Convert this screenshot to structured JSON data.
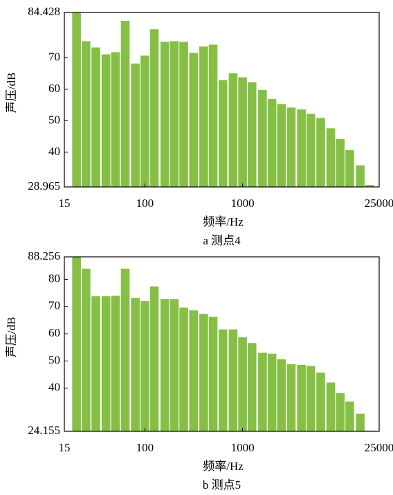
{
  "chart_data": [
    {
      "type": "bar",
      "caption": "a  测点4",
      "xlabel": "频率/Hz",
      "ylabel": "声压/dB",
      "color": "#86bf45",
      "log_x": true,
      "x": [
        20,
        25,
        31.5,
        40,
        50,
        63,
        80,
        100,
        125,
        160,
        200,
        250,
        315,
        400,
        500,
        630,
        800,
        1000,
        1250,
        1600,
        2000,
        2500,
        3150,
        4000,
        5000,
        6300,
        8000,
        10000,
        12500,
        16000,
        20000
      ],
      "values": [
        84.4,
        75.3,
        73.3,
        71.1,
        71.8,
        81.8,
        68.2,
        70.7,
        79.1,
        75.1,
        75.3,
        75.1,
        71.6,
        73.6,
        74.2,
        62.9,
        65.1,
        63.8,
        62.2,
        59.8,
        56.9,
        55.3,
        54.2,
        53.6,
        52.2,
        50.9,
        47.6,
        44.2,
        40.7,
        35.8,
        29.6
      ],
      "xlim": [
        15,
        25000
      ],
      "xticks": [
        15,
        100,
        1000,
        25000
      ],
      "ylim": [
        28.965,
        84.428
      ],
      "yticks": [
        28.965,
        40,
        50,
        60,
        70,
        84.428
      ]
    },
    {
      "type": "bar",
      "caption": "b  测点5",
      "xlabel": "频率/Hz",
      "ylabel": "声压/dB",
      "color": "#86bf45",
      "log_x": true,
      "x": [
        20,
        25,
        31.5,
        40,
        50,
        63,
        80,
        100,
        125,
        160,
        200,
        250,
        315,
        400,
        500,
        630,
        800,
        1000,
        1250,
        1600,
        2000,
        2500,
        3150,
        4000,
        5000,
        6300,
        8000,
        10000,
        12500,
        16000,
        20000
      ],
      "values": [
        88.256,
        83.9,
        73.8,
        73.8,
        74.0,
        83.9,
        73.2,
        72.0,
        77.4,
        72.7,
        72.7,
        69.6,
        68.6,
        67.3,
        66.2,
        61.6,
        61.6,
        58.7,
        56.6,
        53.0,
        52.7,
        50.6,
        48.8,
        48.6,
        48.1,
        45.7,
        42.1,
        38.2,
        35.1,
        30.6,
        24.4
      ],
      "xlim": [
        15,
        25000
      ],
      "xticks": [
        15,
        100,
        1000,
        25000
      ],
      "ylim": [
        24.155,
        88.256
      ],
      "yticks": [
        24.155,
        40,
        50,
        60,
        70,
        80,
        88.256
      ]
    }
  ]
}
